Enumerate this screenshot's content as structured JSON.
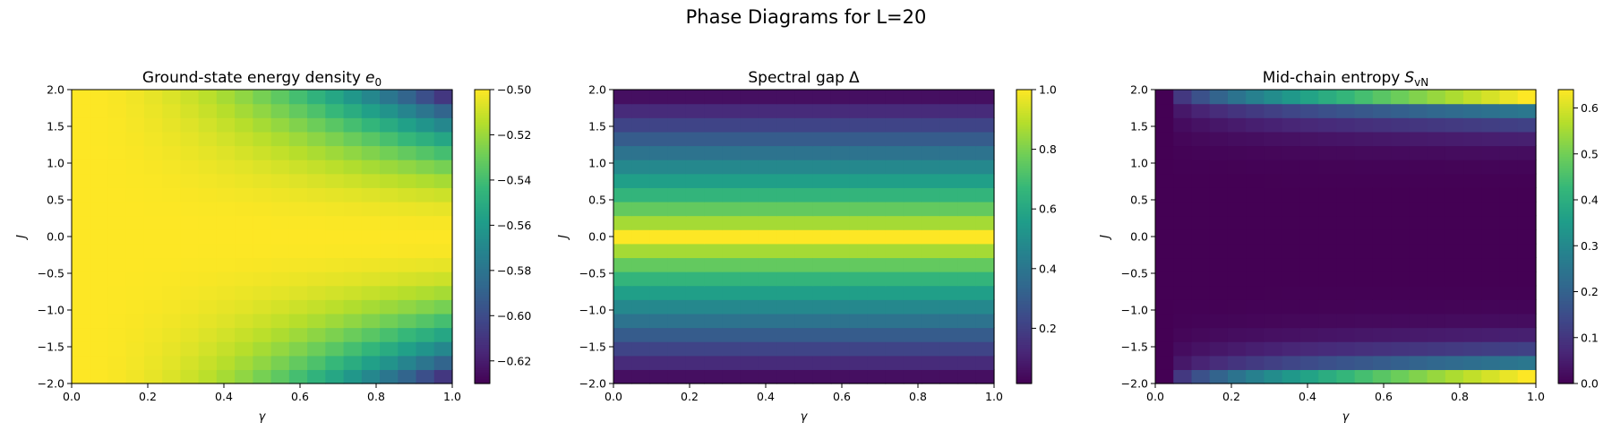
{
  "figure": {
    "suptitle": "Phase Diagrams for L=20"
  },
  "colormap": {
    "name": "viridis",
    "stops": [
      "#440154",
      "#482878",
      "#3e4989",
      "#31688e",
      "#26828e",
      "#1f9e89",
      "#35b779",
      "#6ece58",
      "#b5de2b",
      "#fde725"
    ]
  },
  "chart_data": [
    {
      "type": "heatmap",
      "title": "Ground-state energy density",
      "title_symbol": "e",
      "title_subscript": "0",
      "xlabel": "γ",
      "ylabel": "J",
      "xlim": [
        0,
        1
      ],
      "ylim": [
        -2,
        2
      ],
      "x_ticks": [
        "0.0",
        "0.2",
        "0.4",
        "0.6",
        "0.8",
        "1.0"
      ],
      "y_ticks": [
        "−2.0",
        "−1.5",
        "−1.0",
        "−0.5",
        "0.0",
        "0.5",
        "1.0",
        "1.5",
        "2.0"
      ],
      "grid": {
        "nx": 21,
        "ny": 21
      },
      "value_model": "e0 = -0.5 - 0.03*gamma^2*J^2 (estimated)",
      "colorbar": {
        "range": [
          -0.63,
          -0.5
        ],
        "ticks": [
          "−0.50",
          "−0.52",
          "−0.54",
          "−0.56",
          "−0.58",
          "−0.60",
          "−0.62"
        ]
      }
    },
    {
      "type": "heatmap",
      "title": "Spectral gap",
      "title_symbol": "Δ",
      "title_subscript": "",
      "xlabel": "γ",
      "ylabel": "J",
      "xlim": [
        0,
        1
      ],
      "ylim": [
        -2,
        2
      ],
      "x_ticks": [
        "0.0",
        "0.2",
        "0.4",
        "0.6",
        "0.8",
        "1.0"
      ],
      "y_ticks": [
        "−2.0",
        "−1.5",
        "−1.0",
        "−0.5",
        "0.0",
        "0.5",
        "1.0",
        "1.5",
        "2.0"
      ],
      "grid": {
        "nx": 21,
        "ny": 21
      },
      "value_model": "gap = 1 - 0.985*(|J|/2)^0.85, independent of gamma (estimated)",
      "colorbar": {
        "range": [
          0.015,
          1.0
        ],
        "ticks": [
          "0.2",
          "0.4",
          "0.6",
          "0.8",
          "1.0"
        ]
      }
    },
    {
      "type": "heatmap",
      "title": "Mid-chain entropy",
      "title_symbol": "S",
      "title_subscript": "vN",
      "xlabel": "γ",
      "ylabel": "J",
      "xlim": [
        0,
        1
      ],
      "ylim": [
        -2,
        2
      ],
      "x_ticks": [
        "0.0",
        "0.2",
        "0.4",
        "0.6",
        "0.8",
        "1.0"
      ],
      "y_ticks": [
        "−2.0",
        "−1.5",
        "−1.0",
        "−0.5",
        "0.0",
        "0.5",
        "1.0",
        "1.5",
        "2.0"
      ],
      "grid": {
        "nx": 21,
        "ny": 21
      },
      "value_model": "S = 0.64*gamma^0.6*(|J|/2)^6, extreme-row boost (estimated)",
      "colorbar": {
        "range": [
          0.0,
          0.64
        ],
        "ticks": [
          "0.0",
          "0.1",
          "0.2",
          "0.3",
          "0.4",
          "0.5",
          "0.6"
        ]
      }
    }
  ]
}
